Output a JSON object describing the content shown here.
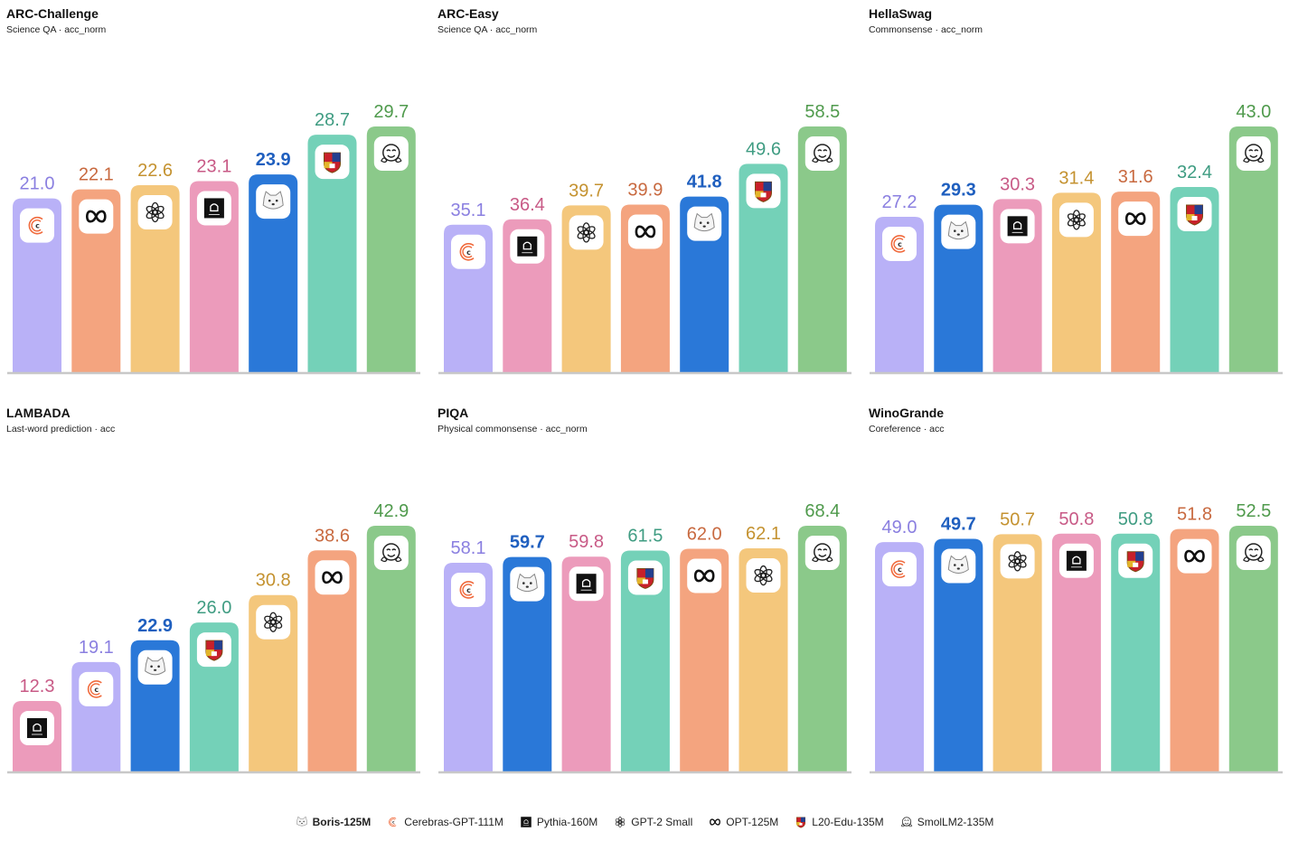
{
  "models": [
    {
      "key": "boris",
      "name": "Boris-125M",
      "color": "#2a78d8",
      "text_color": "#1f5fbf",
      "icon": "bear-icon",
      "highlight": true
    },
    {
      "key": "cerebras",
      "name": "Cerebras-GPT-111M",
      "color": "#b9b1f7",
      "text_color": "#8a7fe0",
      "icon": "cerebras-logo-icon",
      "highlight": false
    },
    {
      "key": "pythia",
      "name": "Pythia-160M",
      "color": "#ec9bbb",
      "text_color": "#c85a86",
      "icon": "eleuther-logo-icon",
      "highlight": false
    },
    {
      "key": "gpt2",
      "name": "GPT-2 Small",
      "color": "#f4c77c",
      "text_color": "#c49230",
      "icon": "openai-logo-icon",
      "highlight": false
    },
    {
      "key": "opt",
      "name": "OPT-125M",
      "color": "#f4a47f",
      "text_color": "#c8693f",
      "icon": "meta-logo-icon",
      "highlight": false
    },
    {
      "key": "l20",
      "name": "L20-Edu-135M",
      "color": "#74d1b8",
      "text_color": "#3f9c82",
      "icon": "crest-icon",
      "highlight": false
    },
    {
      "key": "smollm",
      "name": "SmolLM2-135M",
      "color": "#8bc98a",
      "text_color": "#4f9a4c",
      "icon": "hugging-face-icon",
      "highlight": false
    }
  ],
  "chart_data": [
    {
      "type": "bar",
      "title": "ARC-Challenge",
      "subtitle": "Science QA · acc_norm",
      "categories": [
        "Cerebras-GPT-111M",
        "OPT-125M",
        "GPT-2 Small",
        "Pythia-160M",
        "Boris-125M",
        "L20-Edu-135M",
        "SmolLM2-135M"
      ],
      "keys": [
        "cerebras",
        "opt",
        "gpt2",
        "pythia",
        "boris",
        "l20",
        "smollm"
      ],
      "values": [
        21.0,
        22.1,
        22.6,
        23.1,
        23.9,
        28.7,
        29.7
      ],
      "labels": [
        "21.0",
        "22.1",
        "22.6",
        "23.1",
        "23.9",
        "28.7",
        "29.7"
      ]
    },
    {
      "type": "bar",
      "title": "ARC-Easy",
      "subtitle": "Science QA · acc_norm",
      "categories": [
        "Cerebras-GPT-111M",
        "Pythia-160M",
        "GPT-2 Small",
        "OPT-125M",
        "Boris-125M",
        "L20-Edu-135M",
        "SmolLM2-135M"
      ],
      "keys": [
        "cerebras",
        "pythia",
        "gpt2",
        "opt",
        "boris",
        "l20",
        "smollm"
      ],
      "values": [
        35.1,
        36.4,
        39.7,
        39.9,
        41.8,
        49.6,
        58.5
      ],
      "labels": [
        "35.1",
        "36.4",
        "39.7",
        "39.9",
        "41.8",
        "49.6",
        "58.5"
      ]
    },
    {
      "type": "bar",
      "title": "HellaSwag",
      "subtitle": "Commonsense · acc_norm",
      "categories": [
        "Cerebras-GPT-111M",
        "Boris-125M",
        "Pythia-160M",
        "GPT-2 Small",
        "OPT-125M",
        "L20-Edu-135M",
        "SmolLM2-135M"
      ],
      "keys": [
        "cerebras",
        "boris",
        "pythia",
        "gpt2",
        "opt",
        "l20",
        "smollm"
      ],
      "values": [
        27.2,
        29.3,
        30.3,
        31.4,
        31.6,
        32.4,
        43.0
      ],
      "labels": [
        "27.2",
        "29.3",
        "30.3",
        "31.4",
        "31.6",
        "32.4",
        "43.0"
      ]
    },
    {
      "type": "bar",
      "title": "LAMBADA",
      "subtitle": "Last-word prediction · acc",
      "categories": [
        "Pythia-160M",
        "Cerebras-GPT-111M",
        "Boris-125M",
        "L20-Edu-135M",
        "GPT-2 Small",
        "OPT-125M",
        "SmolLM2-135M"
      ],
      "keys": [
        "pythia",
        "cerebras",
        "boris",
        "l20",
        "gpt2",
        "opt",
        "smollm"
      ],
      "values": [
        12.3,
        19.1,
        22.9,
        26.0,
        30.8,
        38.6,
        42.9
      ],
      "labels": [
        "12.3",
        "19.1",
        "22.9",
        "26.0",
        "30.8",
        "38.6",
        "42.9"
      ]
    },
    {
      "type": "bar",
      "title": "PIQA",
      "subtitle": "Physical commonsense · acc_norm",
      "categories": [
        "Cerebras-GPT-111M",
        "Boris-125M",
        "Pythia-160M",
        "L20-Edu-135M",
        "OPT-125M",
        "GPT-2 Small",
        "SmolLM2-135M"
      ],
      "keys": [
        "cerebras",
        "boris",
        "pythia",
        "l20",
        "opt",
        "gpt2",
        "smollm"
      ],
      "values": [
        58.1,
        59.7,
        59.8,
        61.5,
        62.0,
        62.1,
        68.4
      ],
      "labels": [
        "58.1",
        "59.7",
        "59.8",
        "61.5",
        "62.0",
        "62.1",
        "68.4"
      ]
    },
    {
      "type": "bar",
      "title": "WinoGrande",
      "subtitle": "Coreference · acc",
      "categories": [
        "Cerebras-GPT-111M",
        "Boris-125M",
        "GPT-2 Small",
        "Pythia-160M",
        "L20-Edu-135M",
        "OPT-125M",
        "SmolLM2-135M"
      ],
      "keys": [
        "cerebras",
        "boris",
        "gpt2",
        "pythia",
        "l20",
        "opt",
        "smollm"
      ],
      "values": [
        49.0,
        49.7,
        50.7,
        50.8,
        50.8,
        51.8,
        52.5
      ],
      "labels": [
        "49.0",
        "49.7",
        "50.7",
        "50.8",
        "50.8",
        "51.8",
        "52.5"
      ]
    }
  ],
  "legend": {
    "placement": "bottom-center"
  }
}
